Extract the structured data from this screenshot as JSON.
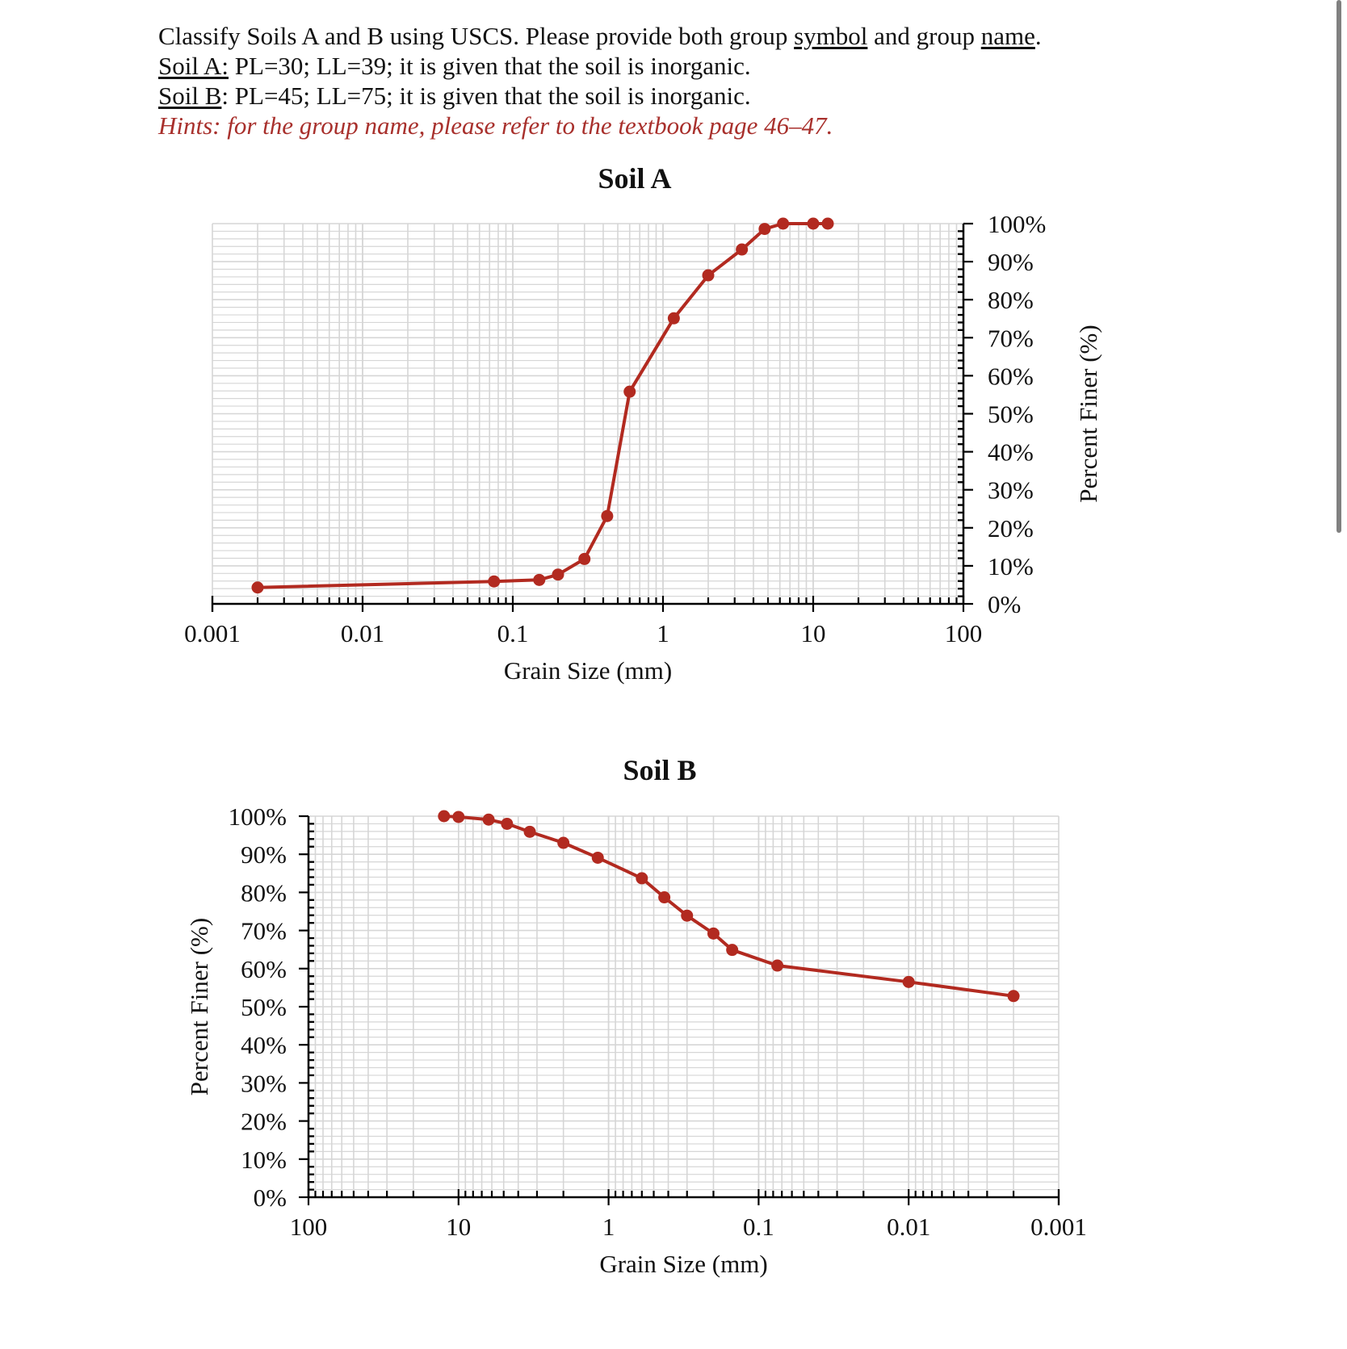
{
  "question": {
    "line1_pre": "Classify Soils A and B using USCS. Please provide both group ",
    "line1_u1": "symbol",
    "line1_mid": " and group ",
    "line1_u2": "name",
    "line1_end": ".",
    "soilA_label": "Soil A:",
    "soilA_text": " PL=30; LL=39; it is given that the soil is inorganic.",
    "soilB_label": "Soil B",
    "soilB_text": ": PL=45; LL=75; it is given that the soil is inorganic.",
    "hint": "Hints: for the group name, please refer to the textbook page 46–47."
  },
  "colors": {
    "series": "#b22a20",
    "hint": "#a8302c",
    "grid": "#d6d6d6",
    "axis": "#000000"
  },
  "chart_data": [
    {
      "type": "line",
      "title": "Soil A",
      "xlabel": "Grain Size (mm)",
      "ylabel": "Percent Finer (%)",
      "x_scale": "log",
      "xlim": [
        0.001,
        100
      ],
      "x_direction": "increasing-left-to-right",
      "ylim": [
        0,
        100
      ],
      "y_axis_position": "right",
      "x_ticks": [
        "0.001",
        "0.01",
        "0.1",
        "1",
        "10",
        "100"
      ],
      "y_ticks": [
        "0%",
        "10%",
        "20%",
        "30%",
        "40%",
        "50%",
        "60%",
        "70%",
        "80%",
        "90%",
        "100%"
      ],
      "grid": true,
      "series": [
        {
          "name": "Soil A",
          "x": [
            0.002,
            0.075,
            0.15,
            0.2,
            0.3,
            0.425,
            0.6,
            1.18,
            2.0,
            3.35,
            4.75,
            6.3,
            10,
            12.5
          ],
          "y": [
            4.3,
            5.9,
            6.3,
            7.7,
            11.8,
            23.1,
            55.8,
            75.1,
            86.4,
            93.2,
            98.6,
            100,
            100,
            100
          ]
        }
      ]
    },
    {
      "type": "line",
      "title": "Soil B",
      "xlabel": "Grain Size (mm)",
      "ylabel": "Percent Finer (%)",
      "x_scale": "log",
      "xlim": [
        100,
        0.001
      ],
      "x_direction": "decreasing-left-to-right",
      "ylim": [
        0,
        100
      ],
      "y_axis_position": "left",
      "x_ticks": [
        "100",
        "10",
        "1",
        "0.1",
        "0.01",
        "0.001"
      ],
      "y_ticks": [
        "0%",
        "10%",
        "20%",
        "30%",
        "40%",
        "50%",
        "60%",
        "70%",
        "80%",
        "90%",
        "100%"
      ],
      "grid": true,
      "series": [
        {
          "name": "Soil B",
          "x": [
            12.5,
            10,
            6.3,
            4.75,
            3.35,
            2.0,
            1.18,
            0.6,
            0.425,
            0.3,
            0.2,
            0.15,
            0.075,
            0.01,
            0.002
          ],
          "y": [
            100,
            99.8,
            99.1,
            98.0,
            95.9,
            93.0,
            89.1,
            83.7,
            78.7,
            73.9,
            69.2,
            64.9,
            60.8,
            56.5,
            52.8
          ]
        }
      ]
    }
  ]
}
